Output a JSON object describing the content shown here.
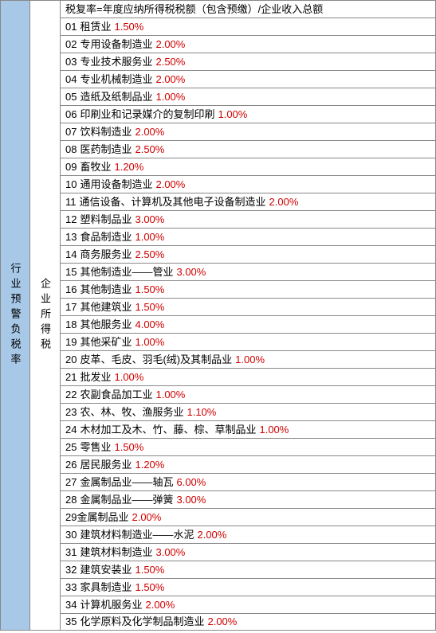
{
  "col1_label": "行业预警负税率",
  "col2_label": "企业所得税",
  "header_text": "税复率=年度应纳所得税税额（包含预缴）/企业收入总额",
  "text_color": "#000000",
  "rate_color": "#d00000",
  "col1_bg": "#a8c8e8",
  "border_color": "#888888",
  "font_size": 13,
  "rows": [
    {
      "num": "01",
      "label": "租赁业",
      "rate": "1.50%"
    },
    {
      "num": "02",
      "label": "专用设备制造业",
      "rate": "2.00%"
    },
    {
      "num": "03",
      "label": "专业技术服务业",
      "rate": "2.50%"
    },
    {
      "num": "04",
      "label": "专业机械制造业",
      "rate": "2.00%"
    },
    {
      "num": "05",
      "label": "造纸及纸制品业",
      "rate": "1.00%"
    },
    {
      "num": "06",
      "label": "印刷业和记录媒介的复制印刷",
      "rate": "1.00%"
    },
    {
      "num": "07",
      "label": "饮料制造业",
      "rate": "2.00%"
    },
    {
      "num": "08",
      "label": "医药制造业",
      "rate": "2.50%"
    },
    {
      "num": "09",
      "label": "畜牧业",
      "rate": "1.20%"
    },
    {
      "num": "10",
      "label": "通用设备制造业",
      "rate": "2.00%"
    },
    {
      "num": "11",
      "label": "通信设备、计算机及其他电子设备制造业",
      "rate": "2.00%"
    },
    {
      "num": "12",
      "label": "塑料制品业",
      "rate": "3.00%"
    },
    {
      "num": "13",
      "label": "食品制造业",
      "rate": "1.00%"
    },
    {
      "num": "14",
      "label": "商务服务业",
      "rate": "2.50%"
    },
    {
      "num": "15",
      "label": "其他制造业——管业",
      "rate": "3.00%"
    },
    {
      "num": "16",
      "label": "其他制造业",
      "rate": "1.50%"
    },
    {
      "num": "17",
      "label": "其他建筑业",
      "rate": "1.50%"
    },
    {
      "num": "18",
      "label": "其他服务业",
      "rate": "4.00%"
    },
    {
      "num": "19",
      "label": "其他采矿业",
      "rate": "1.00%"
    },
    {
      "num": "20",
      "label": "皮革、毛皮、羽毛(绒)及其制品业",
      "rate": "1.00%"
    },
    {
      "num": "21",
      "label": "批发业",
      "rate": "1.00%"
    },
    {
      "num": "22",
      "label": "农副食品加工业",
      "rate": "1.00%"
    },
    {
      "num": "23",
      "label": "农、林、牧、渔服务业",
      "rate": "1.10%"
    },
    {
      "num": "24",
      "label": "木材加工及木、竹、藤、棕、草制品业",
      "rate": "1.00%"
    },
    {
      "num": "25",
      "label": "零售业",
      "rate": "1.50%"
    },
    {
      "num": "26",
      "label": "居民服务业",
      "rate": "1.20%"
    },
    {
      "num": "27",
      "label": "金属制品业——轴瓦",
      "rate": "6.00%"
    },
    {
      "num": "28",
      "label": "金属制品业——弹簧",
      "rate": "3.00%"
    },
    {
      "num": "29",
      "label": "金属制品业",
      "rate": "2.00%",
      "nospace": true
    },
    {
      "num": "30",
      "label": "建筑材料制造业——水泥",
      "rate": "2.00%"
    },
    {
      "num": "31",
      "label": "建筑材料制造业",
      "rate": "3.00%"
    },
    {
      "num": "32",
      "label": "建筑安装业",
      "rate": "1.50%"
    },
    {
      "num": "33",
      "label": "家具制造业",
      "rate": "1.50%"
    },
    {
      "num": "34",
      "label": "计算机服务业",
      "rate": "2.00%"
    },
    {
      "num": "35",
      "label": "化学原料及化学制品制造业",
      "rate": "2.00%"
    }
  ]
}
